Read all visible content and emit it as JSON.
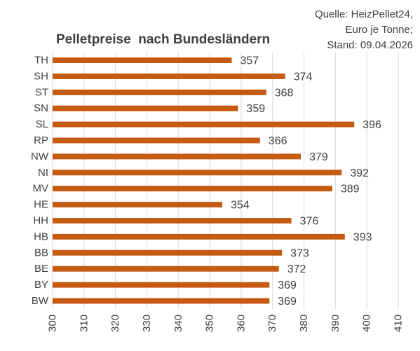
{
  "chart_data": {
    "type": "bar",
    "orientation": "horizontal",
    "title": "Pelletpreise  nach Bundesländern",
    "source_lines": [
      "Quelle: HeizPellet24,",
      "Euro je Tonne;",
      "Stand: 09.04.2026"
    ],
    "categories": [
      "TH",
      "SH",
      "ST",
      "SN",
      "SL",
      "RP",
      "NW",
      "NI",
      "MV",
      "HE",
      "HH",
      "HB",
      "BB",
      "BE",
      "BY",
      "BW"
    ],
    "values": [
      357,
      374,
      368,
      359,
      396,
      366,
      379,
      392,
      389,
      354,
      376,
      393,
      373,
      372,
      369,
      369
    ],
    "xlim": [
      300,
      410
    ],
    "xticks": [
      300,
      310,
      320,
      330,
      340,
      350,
      360,
      370,
      380,
      390,
      400,
      410
    ],
    "bar_color": "#C55A11",
    "grid_color": "#D9D9D9",
    "grid": true,
    "data_labels": true
  }
}
